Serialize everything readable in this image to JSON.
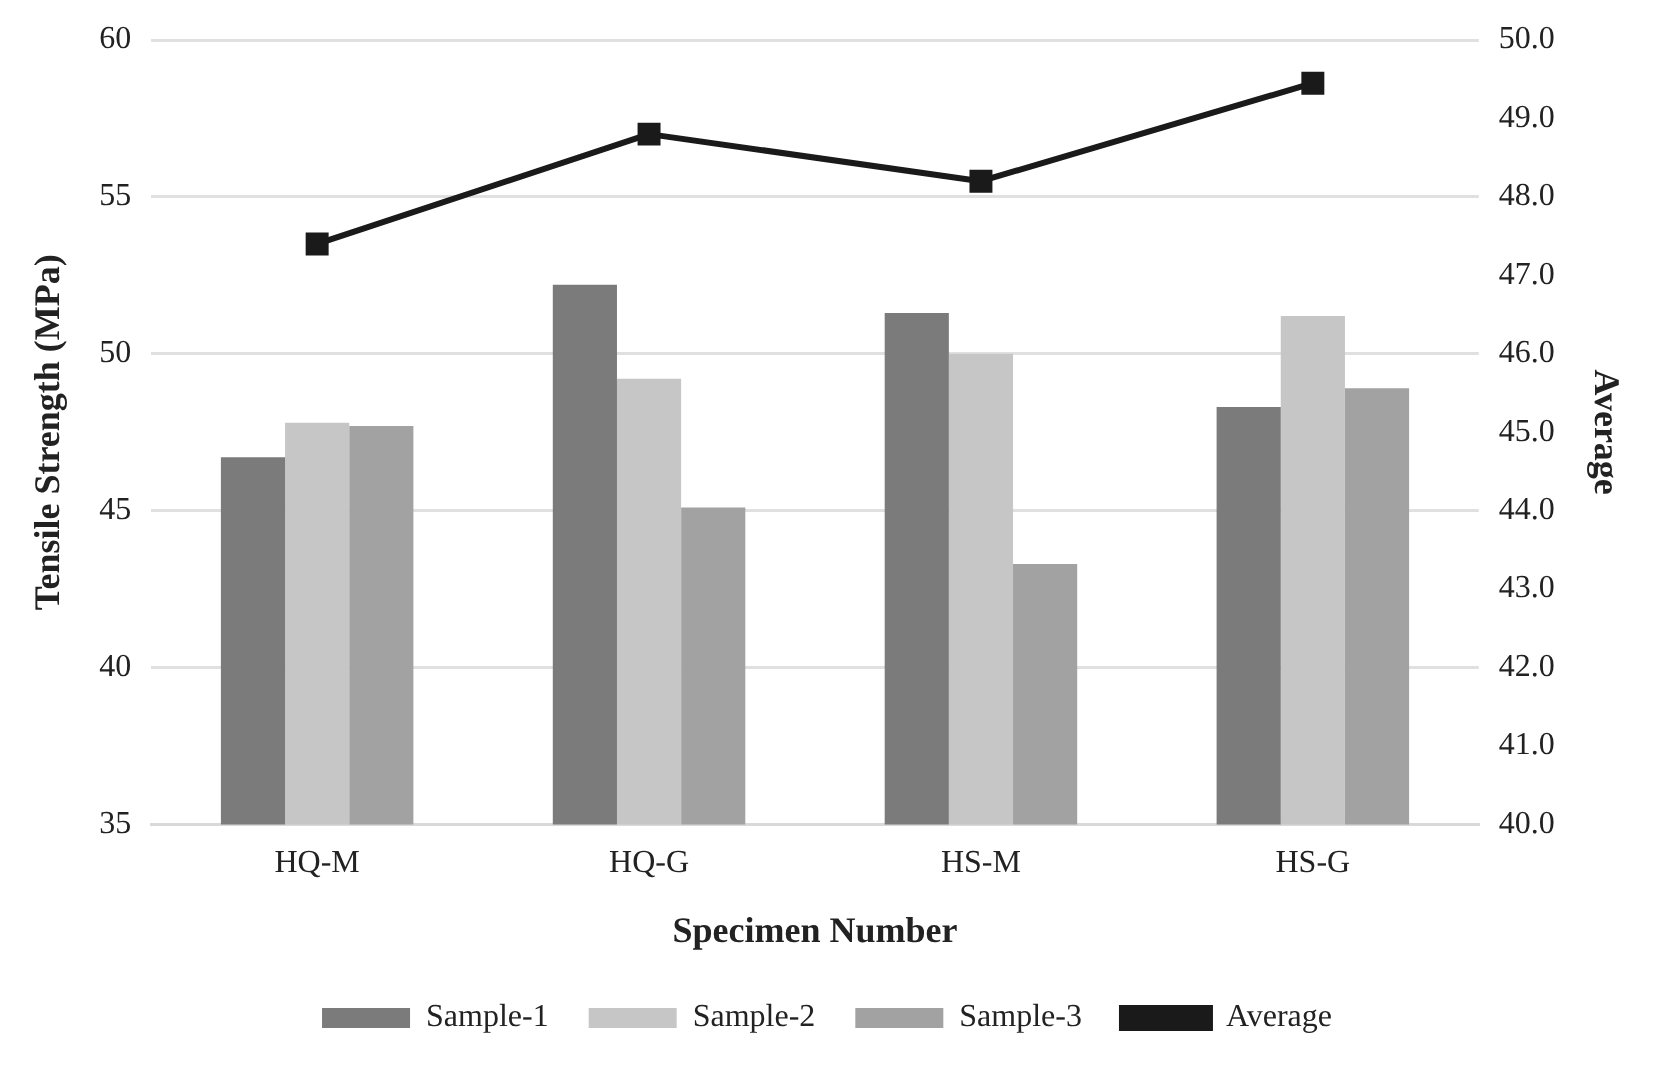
{
  "chart_data": {
    "type": "bar",
    "xlabel": "Specimen Number",
    "ylabel": "Tensile Strength (MPa)",
    "y2label": "Average",
    "categories": [
      "HQ-M",
      "HQ-G",
      "HS-M",
      "HS-G"
    ],
    "series": [
      {
        "name": "Sample-1",
        "color": "#7b7b7b",
        "values": [
          46.7,
          52.2,
          51.3,
          48.3
        ]
      },
      {
        "name": "Sample-2",
        "color": "#c5c6c5",
        "values": [
          47.8,
          49.2,
          50.0,
          51.2
        ]
      },
      {
        "name": "Sample-3",
        "color": "#a2a2a2",
        "values": [
          47.7,
          45.1,
          43.3,
          48.9
        ]
      },
      {
        "name": "Average",
        "type": "line",
        "axis": "y2",
        "color": "#1a1a1a",
        "values": [
          47.4,
          48.8,
          48.2,
          49.45
        ],
        "marker": "square"
      }
    ],
    "ylim": [
      35,
      60
    ],
    "yticks": [
      35,
      40,
      45,
      50,
      55,
      60
    ],
    "y2lim": [
      40,
      50
    ],
    "y2ticks": [
      {
        "value": 40,
        "label": "40.0"
      },
      {
        "value": 41,
        "label": "41.0"
      },
      {
        "value": 42,
        "label": "42.0"
      },
      {
        "value": 43,
        "label": "43.0"
      },
      {
        "value": 44,
        "label": "44.0"
      },
      {
        "value": 45,
        "label": "45.0"
      },
      {
        "value": 46,
        "label": "46.0"
      },
      {
        "value": 47,
        "label": "47.0"
      },
      {
        "value": 48,
        "label": "48.0"
      },
      {
        "value": 49,
        "label": "49.0"
      },
      {
        "value": 50,
        "label": "50.0"
      }
    ],
    "grid": "y",
    "legend": "bottom"
  }
}
